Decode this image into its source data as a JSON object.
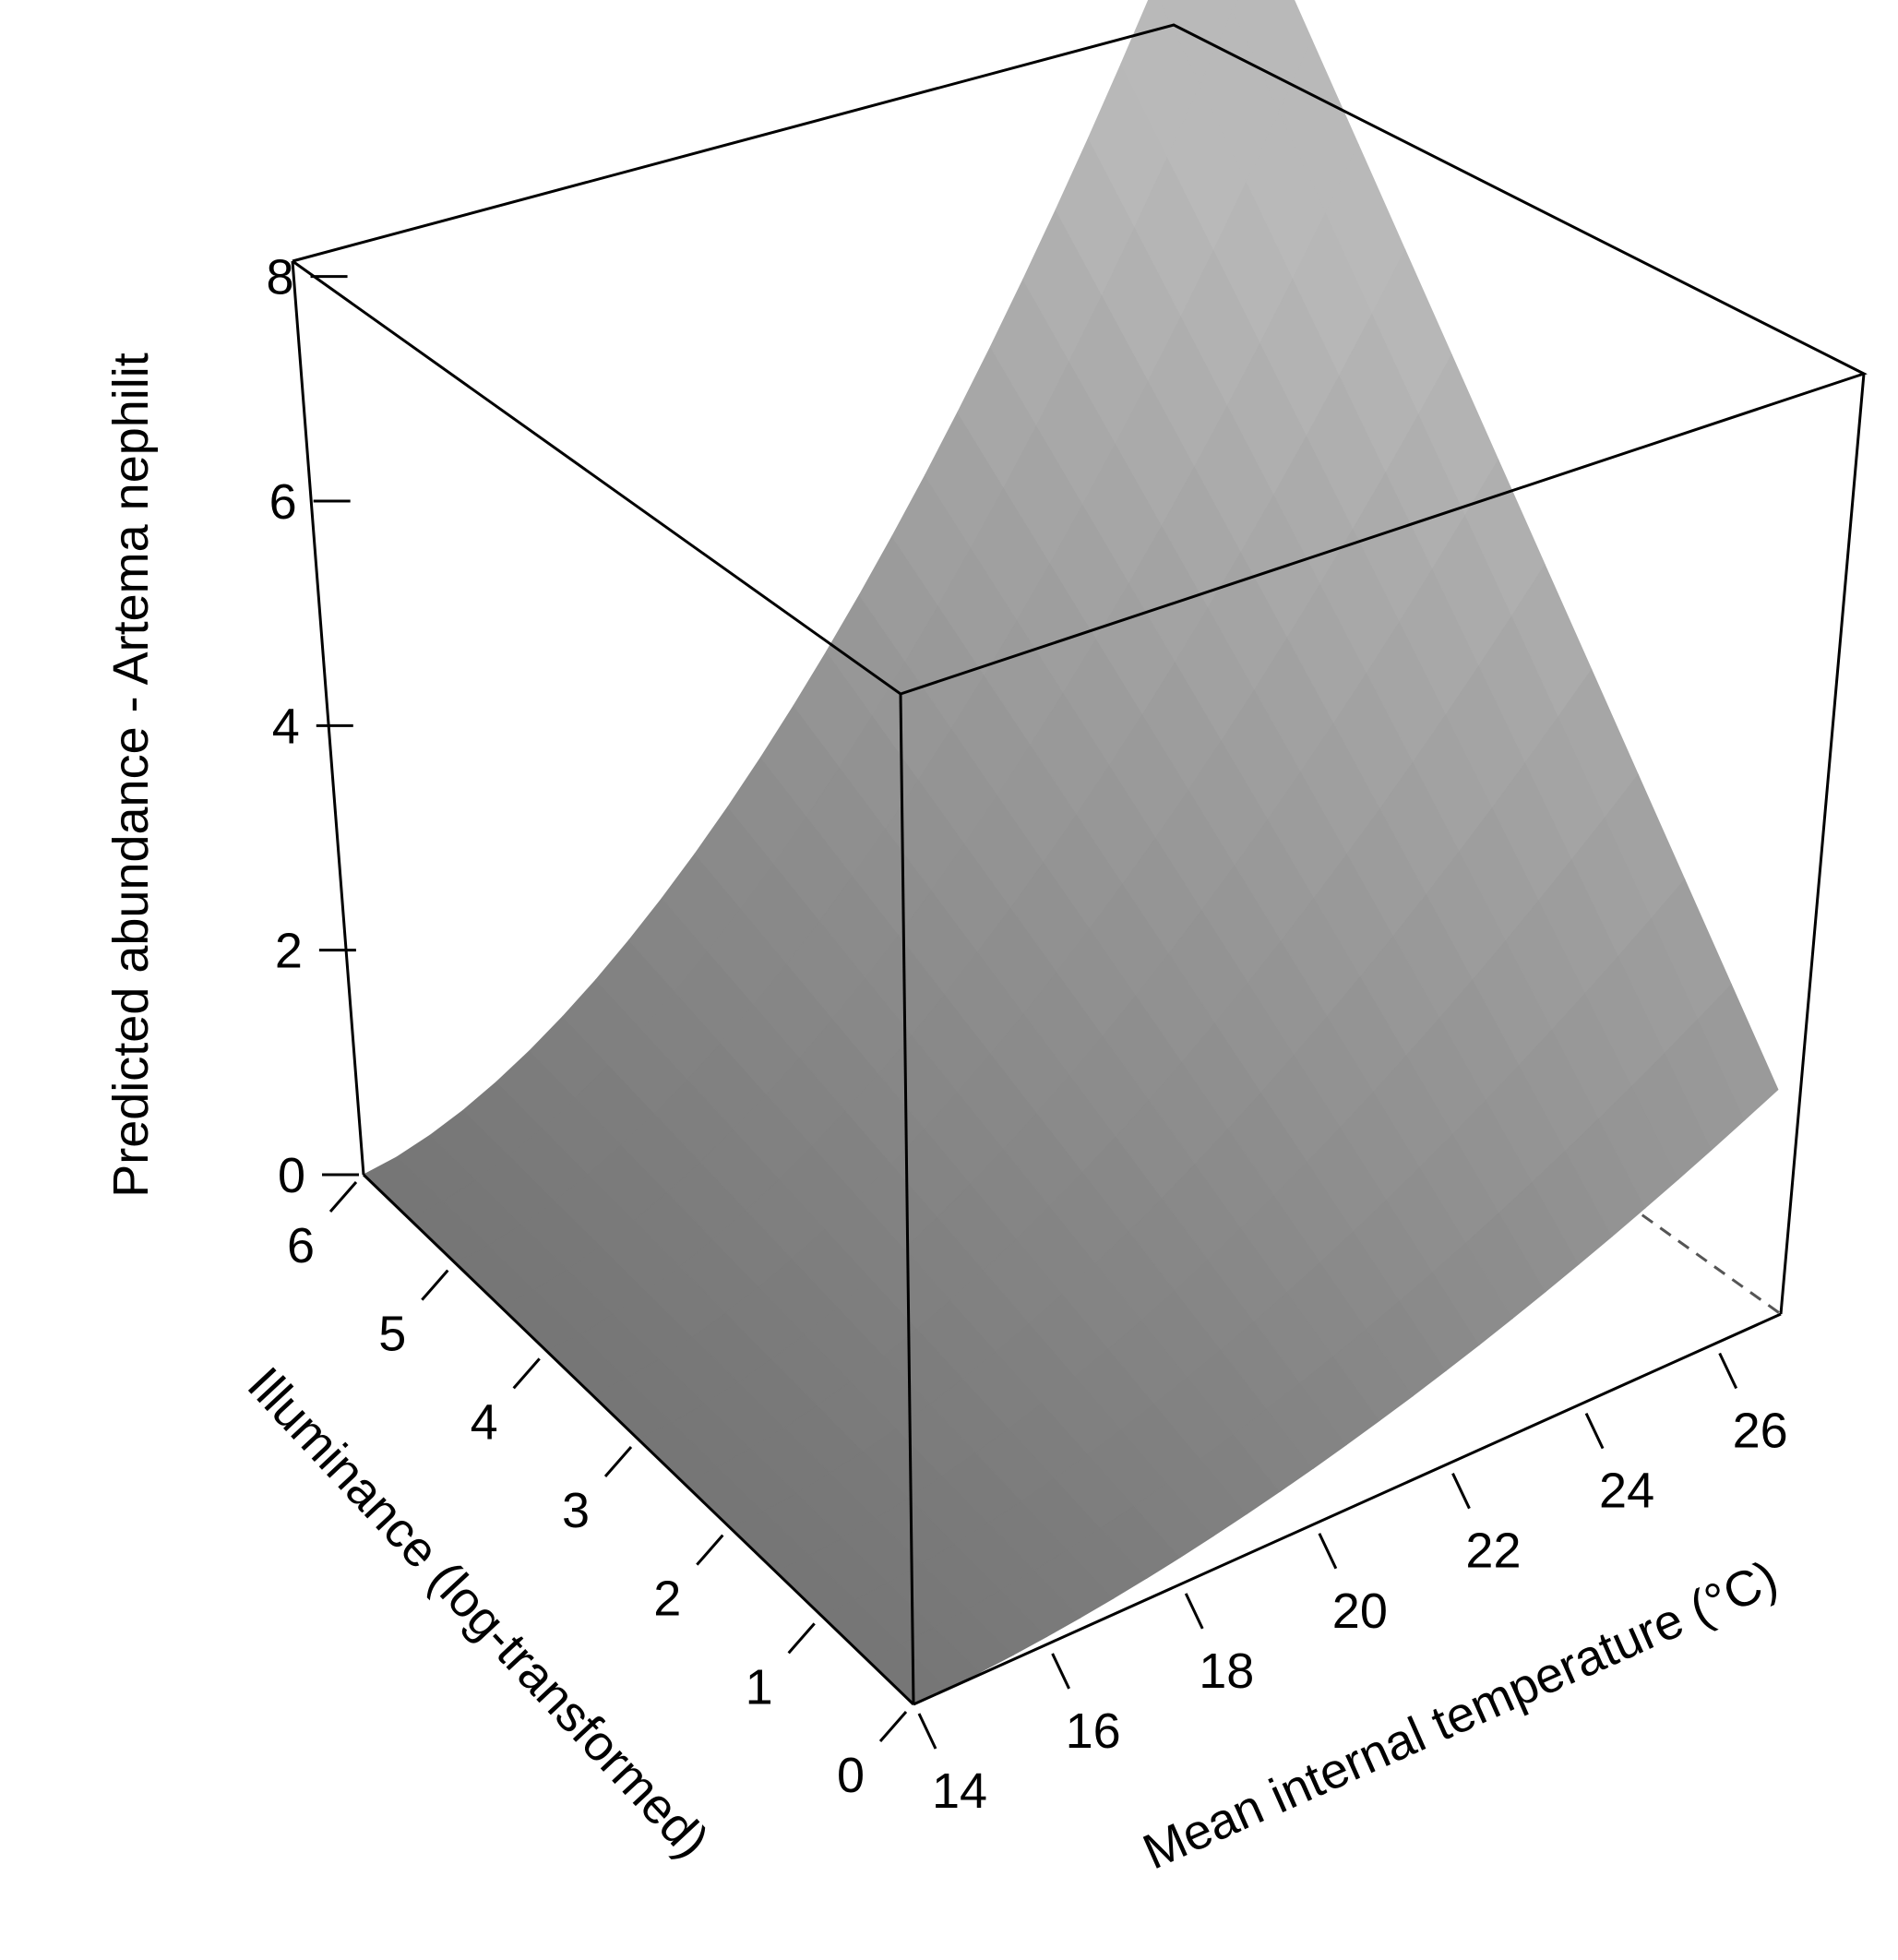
{
  "chart_data": {
    "type": "surface",
    "title": "",
    "x_axis": {
      "label": "Mean internal temperature (°C)",
      "range": [
        14,
        27
      ],
      "ticks": [
        14,
        16,
        18,
        20,
        22,
        24,
        26
      ]
    },
    "y_axis": {
      "label": "Illuminance (log-transformed)",
      "range": [
        0,
        6
      ],
      "ticks": [
        0,
        1,
        2,
        3,
        4,
        5,
        6
      ]
    },
    "z_axis": {
      "label": "Predicted abundance - Artema nephilit",
      "range": [
        0,
        9
      ],
      "ticks": [
        0,
        2,
        4,
        6,
        8
      ]
    },
    "surface": {
      "color": "#a0a0a0",
      "corner_values": [
        {
          "temperature": 14,
          "illuminance": 0,
          "abundance": 0.0
        },
        {
          "temperature": 14,
          "illuminance": 6,
          "abundance": 0.0
        },
        {
          "temperature": 27,
          "illuminance": 0,
          "abundance": 2.0
        },
        {
          "temperature": 27,
          "illuminance": 6,
          "abundance": 8.5
        }
      ],
      "edge_profiles": {
        "temperature_14": [
          0.0,
          0.0,
          0.0,
          0.0,
          0.0,
          0.0,
          0.0
        ],
        "illuminance_0_by_temperature": [
          {
            "temperature": 14,
            "abundance": 0.0
          },
          {
            "temperature": 18,
            "abundance": 0.1
          },
          {
            "temperature": 22,
            "abundance": 0.5
          },
          {
            "temperature": 27,
            "abundance": 2.0
          }
        ],
        "illuminance_6_by_temperature": [
          {
            "temperature": 14,
            "abundance": 0.0
          },
          {
            "temperature": 16,
            "abundance": 0.3
          },
          {
            "temperature": 18,
            "abundance": 1.2
          },
          {
            "temperature": 20,
            "abundance": 2.6
          },
          {
            "temperature": 22,
            "abundance": 4.2
          },
          {
            "temperature": 24,
            "abundance": 5.8
          },
          {
            "temperature": 27,
            "abundance": 8.5
          }
        ],
        "temperature_27_by_illuminance": [
          {
            "illuminance": 0,
            "abundance": 2.0
          },
          {
            "illuminance": 2,
            "abundance": 3.9
          },
          {
            "illuminance": 4,
            "abundance": 6.0
          },
          {
            "illuminance": 6,
            "abundance": 8.5
          }
        ]
      }
    },
    "box": "full"
  }
}
